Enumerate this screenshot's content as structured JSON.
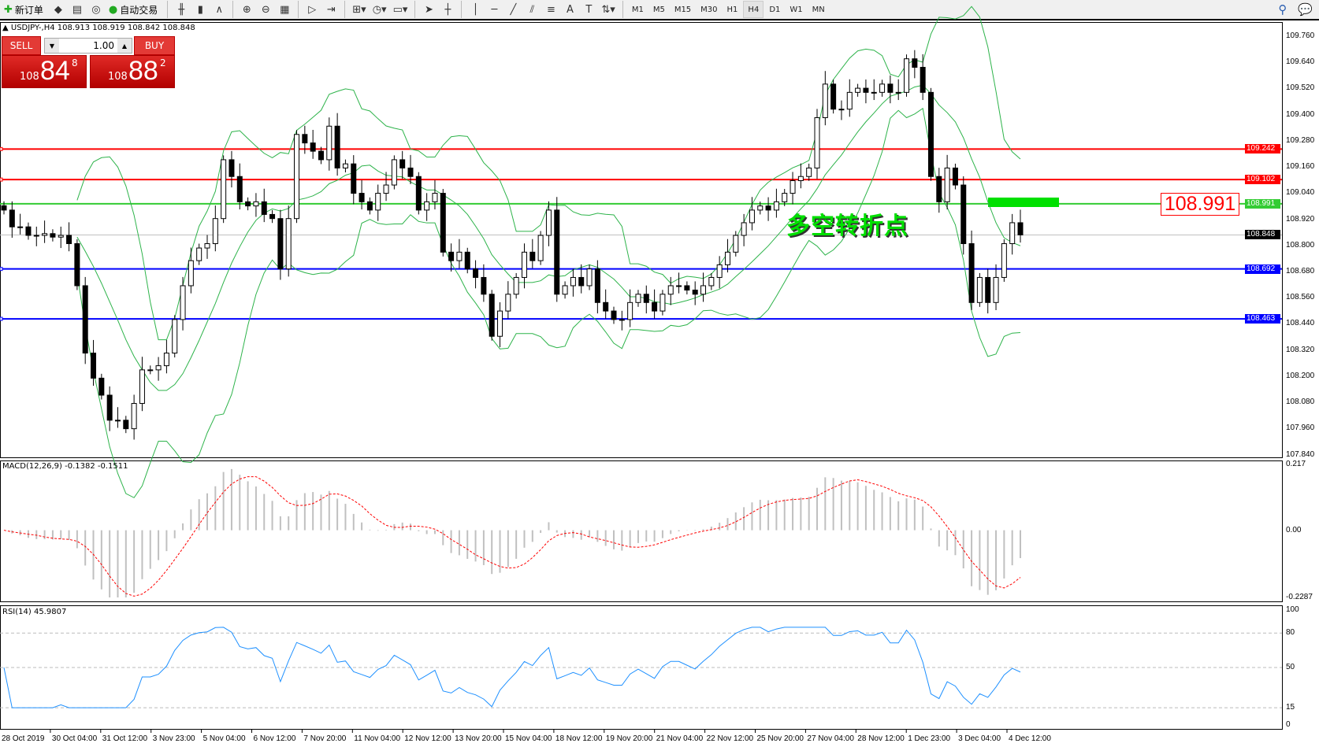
{
  "toolbar": {
    "items": [
      {
        "icon": "new-order-icon",
        "glyph": "✚",
        "label": "新订单"
      },
      {
        "icon": "market-watch-icon",
        "glyph": "◆"
      },
      {
        "icon": "navigator-icon",
        "glyph": "▤"
      },
      {
        "icon": "signal-icon",
        "glyph": "◎"
      },
      {
        "icon": "auto-trading-icon",
        "glyph": "●",
        "label": "自动交易"
      },
      {
        "icon": "bar-chart-icon",
        "glyph": "╫"
      },
      {
        "icon": "candlestick-icon",
        "glyph": "▮"
      },
      {
        "icon": "line-chart-icon",
        "glyph": "∧"
      },
      {
        "icon": "zoom-in-icon",
        "glyph": "⊕"
      },
      {
        "icon": "zoom-out-icon",
        "glyph": "⊖"
      },
      {
        "icon": "tile-windows-icon",
        "glyph": "▦"
      },
      {
        "icon": "auto-scroll-icon",
        "glyph": "▷"
      },
      {
        "icon": "chart-shift-icon",
        "glyph": "⇥"
      },
      {
        "icon": "indicators-icon",
        "glyph": "⊞▾"
      },
      {
        "icon": "periods-icon",
        "glyph": "◷▾"
      },
      {
        "icon": "templates-icon",
        "glyph": "▭▾"
      },
      {
        "icon": "cursor-icon",
        "glyph": "➤"
      },
      {
        "icon": "crosshair-icon",
        "glyph": "┼"
      },
      {
        "icon": "vertical-line-icon",
        "glyph": "│"
      },
      {
        "icon": "horizontal-line-icon",
        "glyph": "─"
      },
      {
        "icon": "trendline-icon",
        "glyph": "╱"
      },
      {
        "icon": "equidistant-channel-icon",
        "glyph": "⫽"
      },
      {
        "icon": "fibonacci-icon",
        "glyph": "≡"
      },
      {
        "icon": "text-icon",
        "glyph": "A"
      },
      {
        "icon": "text-label-icon",
        "glyph": "T"
      },
      {
        "icon": "arrows-icon",
        "glyph": "⇅▾"
      }
    ],
    "timeframes": [
      "M1",
      "M5",
      "M15",
      "M30",
      "H1",
      "H4",
      "D1",
      "W1",
      "MN"
    ],
    "active_timeframe": "H4"
  },
  "symbol_line": "▲ USDJPY-,H4  108.913 108.919 108.842 108.848",
  "trade_panel": {
    "sell_label": "SELL",
    "buy_label": "BUY",
    "lot": "1.00",
    "sell_big": "108",
    "sell_main": "84",
    "sell_sup": "8",
    "buy_big": "108",
    "buy_main": "88",
    "buy_sup": "2"
  },
  "annotation": {
    "text": "多空转折点",
    "price_label": "108.991"
  },
  "price_axis": [
    "109.760",
    "109.640",
    "109.520",
    "109.400",
    "109.280",
    "109.160",
    "109.040",
    "108.920",
    "108.800",
    "108.680",
    "108.560",
    "108.440",
    "108.320",
    "108.200",
    "108.080",
    "107.960",
    "107.840"
  ],
  "levels": [
    {
      "price": "109.242",
      "color": "#ff0000"
    },
    {
      "price": "109.102",
      "color": "#ff0000"
    },
    {
      "price": "108.991",
      "color": "#33cc33"
    },
    {
      "price": "108.848",
      "color": "#000000",
      "line": "#c0c0c0"
    },
    {
      "price": "108.692",
      "color": "#0000ff"
    },
    {
      "price": "108.463",
      "color": "#0000ff"
    }
  ],
  "macd": {
    "label": "MACD(12,26,9) -0.1382 -0.1511",
    "axis": [
      "0.217",
      "0.00",
      "-0.2287"
    ]
  },
  "rsi": {
    "label": "RSI(14) 45.9807",
    "axis": [
      "100",
      "80",
      "50",
      "15",
      "0"
    ]
  },
  "dates": [
    "28 Oct 2019",
    "30 Oct 04:00",
    "31 Oct 12:00",
    "3 Nov 23:00",
    "5 Nov 04:00",
    "6 Nov 12:00",
    "7 Nov 20:00",
    "11 Nov 04:00",
    "12 Nov 12:00",
    "13 Nov 20:00",
    "15 Nov 04:00",
    "18 Nov 12:00",
    "19 Nov 20:00",
    "21 Nov 04:00",
    "22 Nov 12:00",
    "25 Nov 20:00",
    "27 Nov 04:00",
    "28 Nov 12:00",
    "1 Dec 23:00",
    "3 Dec 04:00",
    "4 Dec 12:00"
  ],
  "chart_data": {
    "type": "candlestick",
    "symbol": "USDJPY-",
    "timeframe": "H4",
    "ylim": [
      107.84,
      109.76
    ],
    "indicators": [
      "Bollinger Bands",
      "MACD(12,26,9)",
      "RSI(14)"
    ],
    "colors": {
      "band": "#2db34a",
      "macd_hist": "#c0c0c0",
      "macd_signal": "#ff0000",
      "rsi": "#1e90ff"
    },
    "closes": [
      108.962,
      108.885,
      108.885,
      108.846,
      108.846,
      108.854,
      108.838,
      108.846,
      108.808,
      108.615,
      108.306,
      108.191,
      108.113,
      107.998,
      107.998,
      107.959,
      108.075,
      108.229,
      108.229,
      108.248,
      108.306,
      108.46,
      108.615,
      108.73,
      108.788,
      108.808,
      108.923,
      109.193,
      109.116,
      109.0,
      108.981,
      109.0,
      108.942,
      108.923,
      108.692,
      108.923,
      109.309,
      109.27,
      109.232,
      109.193,
      109.347,
      109.155,
      109.174,
      109.039,
      109.0,
      108.962,
      109.039,
      109.077,
      109.193,
      109.155,
      109.116,
      108.962,
      109.0,
      109.039,
      108.769,
      108.73,
      108.769,
      108.692,
      108.653,
      108.576,
      108.383,
      108.499,
      108.576,
      108.653,
      108.769,
      108.73,
      108.846,
      108.962,
      108.576,
      108.615,
      108.653,
      108.615,
      108.692,
      108.538,
      108.499,
      108.46,
      108.46,
      108.538,
      108.576,
      108.538,
      108.499,
      108.576,
      108.615,
      108.615,
      108.595,
      108.576,
      108.615,
      108.653,
      108.711,
      108.769,
      108.846,
      108.904,
      108.962,
      108.981,
      108.962,
      109.0,
      109.039,
      109.097,
      109.116,
      109.155,
      109.386,
      109.54,
      109.425,
      109.425,
      109.502,
      109.521,
      109.502,
      109.502,
      109.54,
      109.502,
      109.502,
      109.656,
      109.617,
      109.502,
      109.116,
      109.0,
      109.155,
      109.077,
      108.808,
      108.538,
      108.653,
      108.538,
      108.653,
      108.808,
      108.904,
      108.848
    ]
  }
}
